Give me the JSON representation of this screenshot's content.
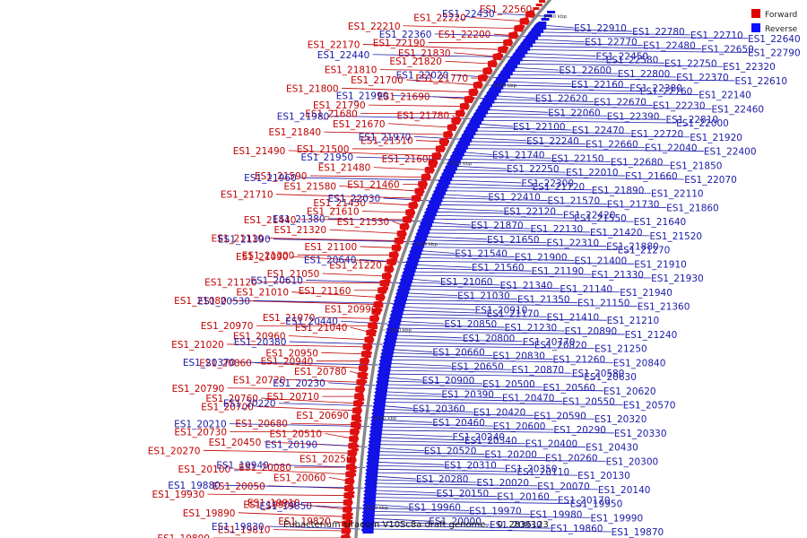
{
  "title": "Eubacterium siraeum V10Sc8a draft genome. - 0..2836123",
  "legend": {
    "forward": {
      "label": "Forward",
      "color": "#e00000"
    },
    "reverse": {
      "label": "Reverse",
      "color": "#1010ff"
    }
  },
  "ticks": [
    "2450 kbp",
    "2400 kbp",
    "2350 kbp",
    "2300 kbp",
    "2250 kbp",
    "2200 kbp",
    "2150 kbp"
  ],
  "forward_labels": [
    "ES1_22560",
    "ES1_22220",
    "ES1_22210",
    "ES1_22200",
    "ES1_22190",
    "ES1_22170",
    "ES1_21830",
    "ES1_21820",
    "ES1_21810",
    "ES1_21770",
    "ES1_21700",
    "ES1_21800",
    "ES1_21690",
    "ES1_21790",
    "ES1_21680",
    "ES1_21780",
    "ES1_21670",
    "ES1_21840",
    "ES1_21510",
    "ES1_21500",
    "ES1_21490",
    "ES1_21600",
    "ES1_21480",
    "ES1_21590",
    "ES1_21460",
    "ES1_21580",
    "ES1_21710",
    "ES1_21450",
    "ES1_21610",
    "ES1_21440",
    "ES1_21530",
    "ES1_21320",
    "ES1_21110",
    "ES1_21100",
    "ES1_21300",
    "ES1_21090",
    "ES1_21220",
    "ES1_21050",
    "ES1_21120",
    "ES1_21160",
    "ES1_21010",
    "ES1_21080",
    "ES1_20990",
    "ES1_21070",
    "ES1_20970",
    "ES1_21040",
    "ES1_20960",
    "ES1_21020",
    "ES1_20950",
    "ES1_20940",
    "ES1_20860",
    "ES1_20780",
    "ES1_20720",
    "ES1_20790",
    "ES1_20710",
    "ES1_20760",
    "ES1_20700",
    "ES1_20690",
    "ES1_20680",
    "ES1_20730",
    "ES1_20510",
    "ES1_20450",
    "ES1_20270",
    "ES1_20250",
    "ES1_20080",
    "ES1_20100",
    "ES1_20060",
    "ES1_20050",
    "ES1_19930",
    "ES1_19910",
    "ES1_19900",
    "ES1_19890",
    "ES1_19820",
    "ES1_19810",
    "ES1_19800"
  ],
  "reverse_left_labels": [
    "ES1_22430",
    "ES1_22360",
    "ES1_22440",
    "ES1_22020",
    "ES1_21990",
    "ES1_21980",
    "ES1_21970",
    "ES1_21950",
    "ES1_21960",
    "ES1_22030",
    "ES1_21380",
    "ES1_21390",
    "ES1_20640",
    "ES1_20610",
    "ES1_20530",
    "ES1_20440",
    "ES1_20380",
    "ES1_20370",
    "ES1_20230",
    "ES1_20220",
    "ES1_20210",
    "ES1_20190",
    "ES1_19940",
    "ES1_19880",
    "ES1_19850",
    "ES1_19830"
  ],
  "reverse_right_labels": [
    "ES1_22910",
    "ES1_22780",
    "ES1_22710",
    "ES1_22640",
    "ES1_22770",
    "ES1_22480",
    "ES1_22650",
    "ES1_22790",
    "ES1_22450",
    "ES1_22580",
    "ES1_22750",
    "ES1_22320",
    "ES1_22600",
    "ES1_22800",
    "ES1_22370",
    "ES1_22610",
    "ES1_22160",
    "ES1_22380",
    "ES1_22760",
    "ES1_22140",
    "ES1_22620",
    "ES1_22670",
    "ES1_22230",
    "ES1_22460",
    "ES1_22060",
    "ES1_22390",
    "ES1_22810",
    "ES1_22000",
    "ES1_22100",
    "ES1_22470",
    "ES1_22720",
    "ES1_21920",
    "ES1_22240",
    "ES1_22660",
    "ES1_22040",
    "ES1_22400",
    "ES1_21740",
    "ES1_22150",
    "ES1_22680",
    "ES1_21850",
    "ES1_22250",
    "ES1_22010",
    "ES1_21660",
    "ES1_22070",
    "ES1_22300",
    "ES1_21720",
    "ES1_21890",
    "ES1_22110",
    "ES1_22410",
    "ES1_21570",
    "ES1_21730",
    "ES1_21860",
    "ES1_22120",
    "ES1_22420",
    "ES1_21550",
    "ES1_21640",
    "ES1_21870",
    "ES1_22130",
    "ES1_21420",
    "ES1_21520",
    "ES1_21650",
    "ES1_22310",
    "ES1_21880",
    "ES1_21270",
    "ES1_21540",
    "ES1_21900",
    "ES1_21400",
    "ES1_21910",
    "ES1_21560",
    "ES1_21190",
    "ES1_21330",
    "ES1_21930",
    "ES1_21060",
    "ES1_21340",
    "ES1_21140",
    "ES1_21940",
    "ES1_21030",
    "ES1_21350",
    "ES1_21150",
    "ES1_21360",
    "ES1_20910",
    "ES1_21170",
    "ES1_21410",
    "ES1_21210",
    "ES1_20850",
    "ES1_21230",
    "ES1_20890",
    "ES1_21240",
    "ES1_20800",
    "ES1_20770",
    "ES1_20820",
    "ES1_21250",
    "ES1_20660",
    "ES1_20830",
    "ES1_21260",
    "ES1_20840",
    "ES1_20650",
    "ES1_20870",
    "ES1_20580",
    "ES1_20630",
    "ES1_20900",
    "ES1_20500",
    "ES1_20560",
    "ES1_20620",
    "ES1_20390",
    "ES1_20470",
    "ES1_20550",
    "ES1_20570",
    "ES1_20360",
    "ES1_20420",
    "ES1_20590",
    "ES1_20320",
    "ES1_20460",
    "ES1_20600",
    "ES1_20290",
    "ES1_20330",
    "ES1_20240",
    "ES1_20340",
    "ES1_20400",
    "ES1_20430",
    "ES1_20520",
    "ES1_20200",
    "ES1_20260",
    "ES1_20300",
    "ES1_20310",
    "ES1_20350",
    "ES1_20110",
    "ES1_20130",
    "ES1_20280",
    "ES1_20020",
    "ES1_20070",
    "ES1_20140",
    "ES1_20150",
    "ES1_20160",
    "ES1_20170",
    "ES1_19950",
    "ES1_19960",
    "ES1_19970",
    "ES1_19980",
    "ES1_19990",
    "ES1_20000",
    "ES1_20030",
    "ES1_19860",
    "ES1_19870"
  ]
}
